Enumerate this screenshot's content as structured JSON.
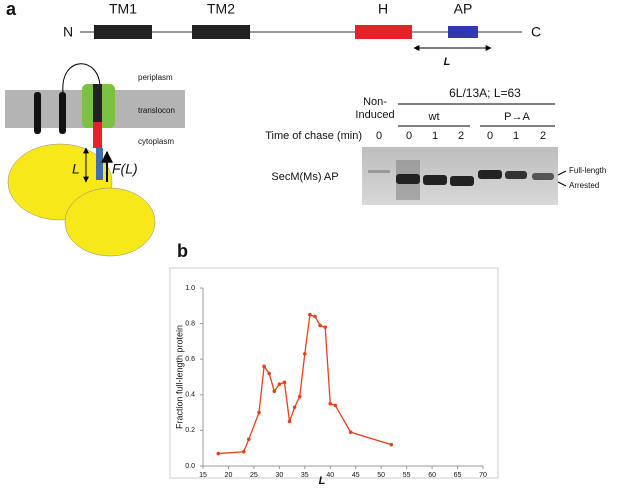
{
  "panel_a": {
    "label": "a",
    "construct": {
      "n_term": "N",
      "tm1": "TM1",
      "tm2": "TM2",
      "h": "H",
      "ap": "AP",
      "c_term": "C",
      "length": "L"
    },
    "scheme": {
      "periplasm": "periplasm",
      "translocon": "translocon",
      "cytoplasm": "cytoplasm",
      "length": "L",
      "force": "F(L)"
    },
    "gel": {
      "construct": "6L/13A; L=63",
      "non_induced_1": "Non-",
      "non_induced_2": "Induced",
      "wt": "wt",
      "pa": "P→A",
      "time_label": "Time of chase (min)",
      "lanes": [
        "0",
        "0",
        "1",
        "2",
        "0",
        "1",
        "2"
      ],
      "protein": "SecM(Ms) AP",
      "full_length": "Full-length",
      "arrested": "Arrested"
    }
  },
  "chart_data": {
    "type": "line",
    "panel_label": "b",
    "x_label": "L",
    "y_label": "Fraction full-length protein",
    "x": [
      18,
      23,
      24,
      26,
      27,
      28,
      29,
      30,
      31,
      32,
      33,
      34,
      35,
      36,
      37,
      38,
      39,
      40,
      41,
      44,
      52
    ],
    "values": [
      0.07,
      0.08,
      0.15,
      0.3,
      0.56,
      0.52,
      0.42,
      0.46,
      0.47,
      0.25,
      0.33,
      0.39,
      0.63,
      0.85,
      0.84,
      0.79,
      0.78,
      0.35,
      0.34,
      0.19,
      0.12
    ],
    "color": "#e8401c",
    "xlim": [
      15,
      70
    ],
    "xticks": [
      15,
      20,
      25,
      30,
      35,
      40,
      45,
      50,
      55,
      60,
      65,
      70
    ],
    "ylim": [
      0,
      1.0
    ],
    "yticks": [
      {
        "value": 0,
        "label": "0.0"
      },
      0.2,
      0.4,
      0.6,
      0.8,
      {
        "value": 1.0,
        "label": "1.0"
      }
    ]
  }
}
